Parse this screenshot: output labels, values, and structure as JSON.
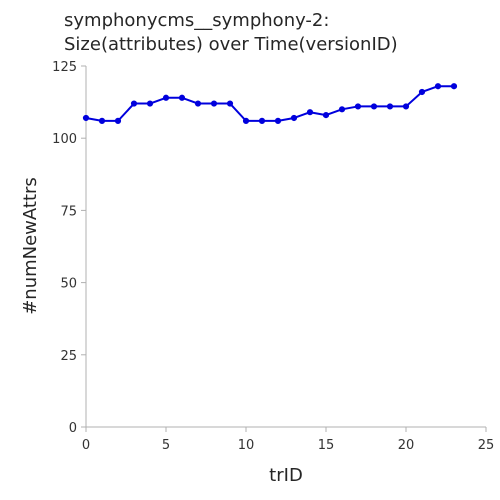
{
  "chart_data": {
    "type": "line",
    "title_lines": [
      "symphonycms__symphony-2:",
      "Size(attributes) over Time(versionID)"
    ],
    "xlabel": "trID",
    "ylabel": "#numNewAttrs",
    "xlim": [
      0,
      25
    ],
    "ylim": [
      0,
      125
    ],
    "xticks": [
      0,
      5,
      10,
      15,
      20,
      25
    ],
    "yticks": [
      0,
      25,
      50,
      75,
      100,
      125
    ],
    "grid": false,
    "series": [
      {
        "color": "#0000dd",
        "marker": "circle",
        "x": [
          0,
          1,
          2,
          3,
          4,
          5,
          6,
          7,
          8,
          9,
          10,
          11,
          12,
          13,
          14,
          15,
          16,
          17,
          18,
          19,
          20,
          21,
          22,
          23
        ],
        "y": [
          107,
          106,
          106,
          112,
          112,
          114,
          114,
          112,
          112,
          112,
          106,
          106,
          106,
          107,
          109,
          108,
          110,
          111,
          111,
          111,
          111,
          116,
          118,
          118
        ]
      }
    ]
  }
}
